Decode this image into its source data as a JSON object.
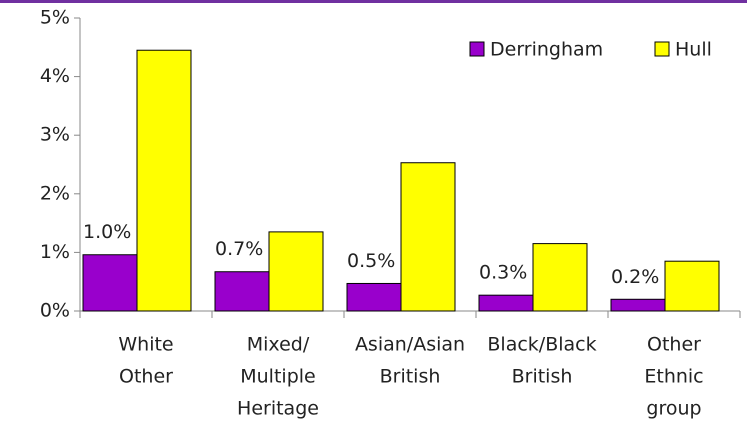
{
  "chart_data": {
    "type": "bar",
    "categories": [
      [
        "White",
        "Other"
      ],
      [
        "Mixed/",
        "Multiple",
        "Heritage"
      ],
      [
        "Asian/Asian",
        "British"
      ],
      [
        "Black/Black",
        "British"
      ],
      [
        "Other",
        "Ethnic",
        "group"
      ]
    ],
    "series": [
      {
        "name": "Derringham",
        "color": "#9900cc",
        "values": [
          0.96,
          0.67,
          0.47,
          0.27,
          0.2
        ],
        "value_labels": [
          "1.0%",
          "0.7%",
          "0.5%",
          "0.3%",
          "0.2%"
        ]
      },
      {
        "name": "Hull",
        "color": "#ffff00",
        "values": [
          4.45,
          1.35,
          2.53,
          1.15,
          0.85
        ]
      }
    ],
    "ylim": [
      0,
      5
    ],
    "yticks": [
      {
        "value": 0,
        "label": "0%"
      },
      {
        "value": 1,
        "label": "1%"
      },
      {
        "value": 2,
        "label": "2%"
      },
      {
        "value": 3,
        "label": "3%"
      },
      {
        "value": 4,
        "label": "4%"
      },
      {
        "value": 5,
        "label": "5%"
      }
    ],
    "grid": false,
    "legend": "top-right"
  }
}
